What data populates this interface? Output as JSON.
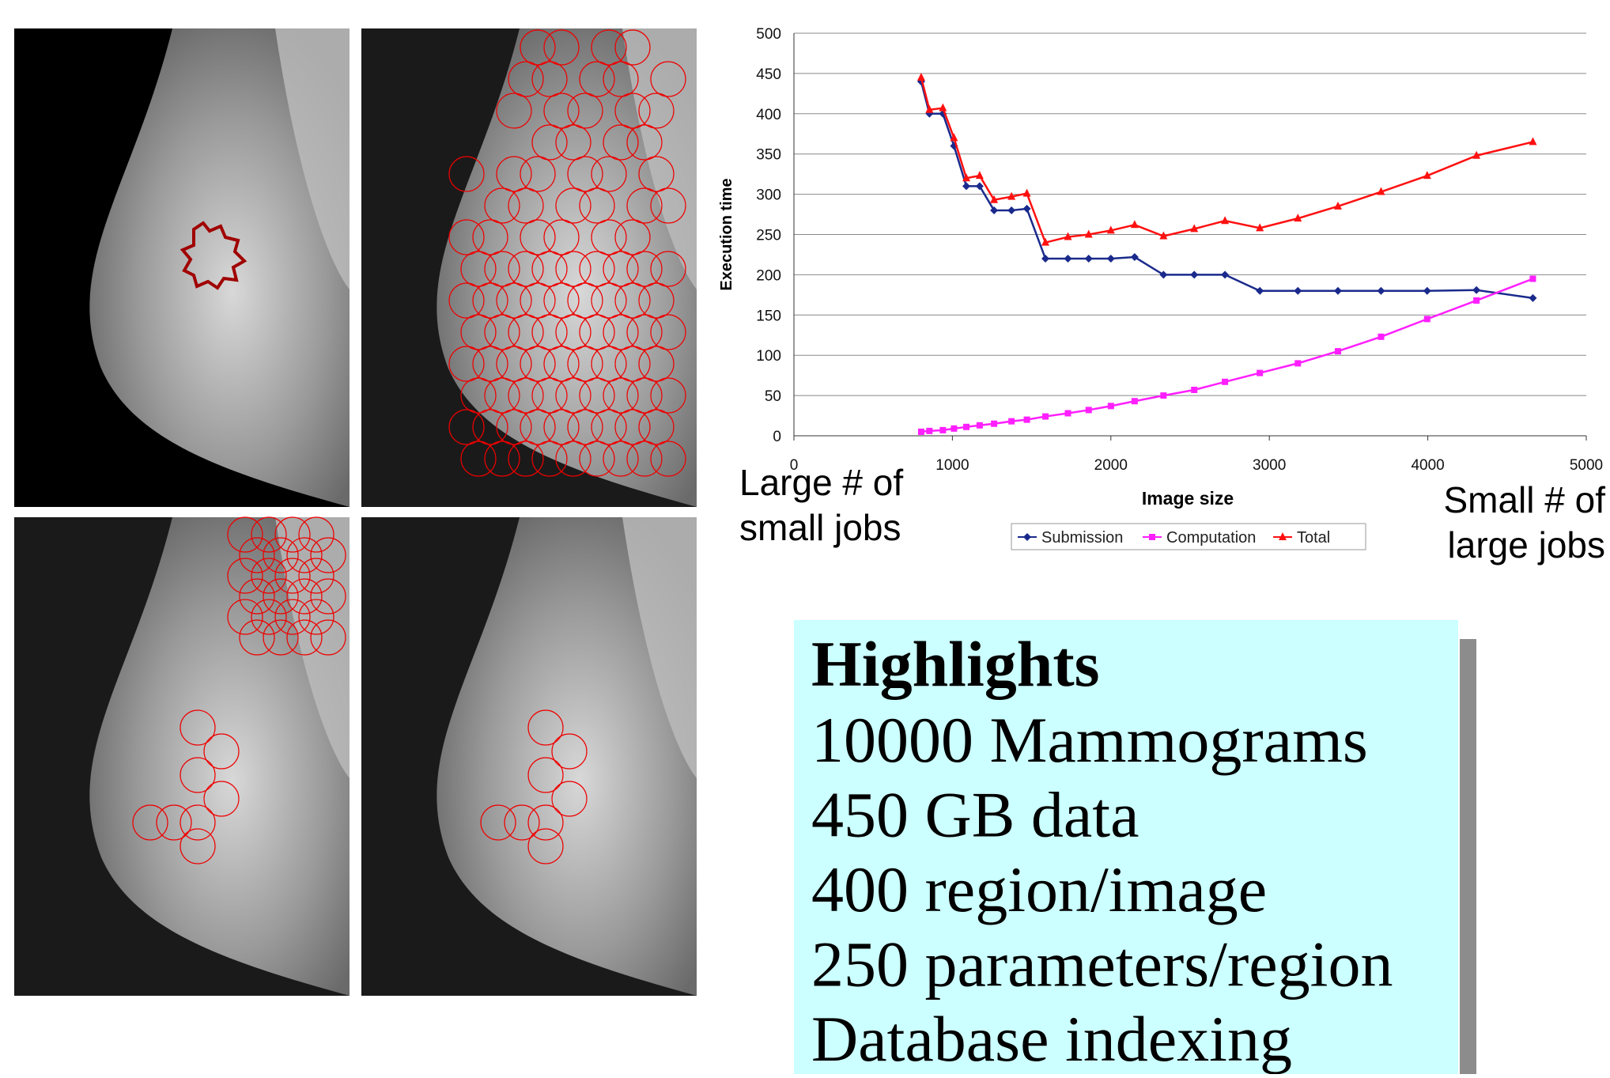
{
  "chart_data": {
    "type": "line",
    "x_label": "Image size",
    "y_label": "Execution time",
    "x": [
      803,
      855,
      940,
      1010,
      1088,
      1172,
      1263,
      1373,
      1470,
      1587,
      1729,
      1860,
      2000,
      2150,
      2332,
      2526,
      2720,
      2940,
      3180,
      3433,
      3705,
      3996,
      4307,
      4663
    ],
    "series": [
      {
        "name": "Submission",
        "color": "#1a2a8c",
        "marker": "diamond",
        "values": [
          440,
          400,
          400,
          360,
          310,
          310,
          280,
          280,
          282,
          220,
          220,
          220,
          220,
          222,
          200,
          200,
          200,
          180,
          180,
          180,
          180,
          180,
          181,
          171
        ]
      },
      {
        "name": "Computation",
        "color": "#ff1fff",
        "marker": "square",
        "values": [
          5,
          6,
          7,
          9,
          11,
          13,
          15,
          18,
          20,
          24,
          28,
          32,
          37,
          43,
          50,
          57,
          67,
          78,
          90,
          105,
          123,
          145,
          168,
          195
        ]
      },
      {
        "name": "Total",
        "color": "#ff1010",
        "marker": "triangle",
        "values": [
          445,
          405,
          407,
          370,
          320,
          323,
          293,
          297,
          301,
          240,
          247,
          250,
          255,
          262,
          248,
          257,
          267,
          258,
          270,
          285,
          303,
          323,
          348,
          365
        ]
      }
    ],
    "xlim": [
      0,
      5000
    ],
    "xticks": [
      0,
      1000,
      2000,
      3000,
      4000,
      5000
    ],
    "ylim": [
      0,
      500
    ],
    "yticks": [
      0,
      50,
      100,
      150,
      200,
      250,
      300,
      350,
      400,
      450,
      500
    ],
    "grid": true,
    "legend": "bottom",
    "annotations": [
      {
        "lines": [
          "Large # of",
          "small jobs"
        ]
      },
      {
        "lines": [
          "Small # of",
          "large jobs"
        ]
      }
    ]
  },
  "highlights": {
    "title": "Highlights",
    "items": [
      "10000 Mammograms",
      "450 GB data",
      "400 region/image",
      "250 parameters/region",
      "Database indexing"
    ]
  }
}
